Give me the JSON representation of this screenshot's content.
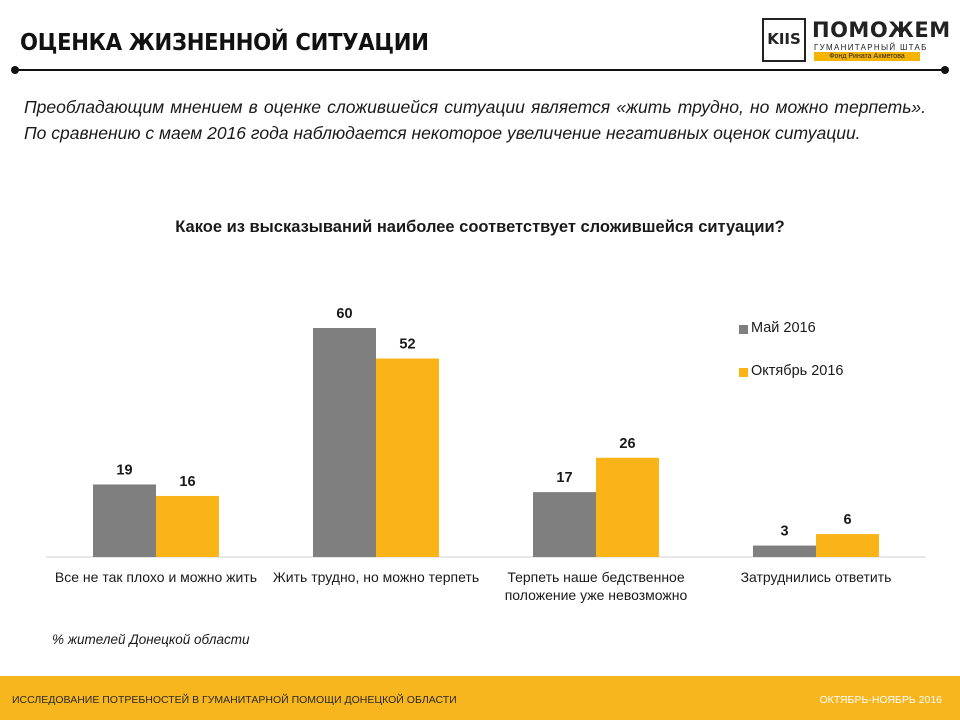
{
  "header": {
    "title": "ОЦЕНКА ЖИЗНЕННОЙ СИТУАЦИИ",
    "logo_kiis": "KIIS",
    "logo_brand": "ПОМОЖЕМ",
    "logo_subtitle": "ГУМАНИТАРНЫЙ ШТАБ",
    "logo_foundation": "Фонд Рината Ахметова"
  },
  "description": "Преобладающим мнением в оценке сложившейся ситуации является «жить трудно, но можно терпеть».  По сравнению с маем 2016 года наблюдается некоторое увеличение негативных оценок ситуации.",
  "note": "% жителей Донецкой области",
  "footer": {
    "left": "ИССЛЕДОВАНИЕ ПОТРЕБНОСТЕЙ В ГУМАНИТАРНОЙ ПОМОЩИ ДОНЕЦКОЙ ОБЛАСТИ",
    "right": "ОКТЯБРЬ-НОЯБРЬ 2016"
  },
  "colors": {
    "series1": "#7f7f7f",
    "series2": "#fbb417",
    "accent": "#f7b51e"
  },
  "chart_data": {
    "type": "bar",
    "title": "Какое из высказываний наиболее соответствует сложившейся ситуации?",
    "categories": [
      "Все не так плохо и можно жить",
      "Жить трудно, но можно терпеть",
      "Терпеть наше бедственное положение уже невозможно",
      "Затруднились ответить"
    ],
    "category_lines": [
      [
        "Все не так плохо и можно жить"
      ],
      [
        "Жить трудно, но можно терпеть"
      ],
      [
        "Терпеть наше бедственное",
        "положение уже невозможно"
      ],
      [
        "Затруднились ответить"
      ]
    ],
    "series": [
      {
        "name": "Май 2016",
        "values": [
          19,
          60,
          17,
          3
        ]
      },
      {
        "name": "Октябрь 2016",
        "values": [
          16,
          52,
          26,
          6
        ]
      }
    ],
    "ylim": [
      0,
      60
    ],
    "grid": false,
    "legend": "top-right",
    "xlabel": "",
    "ylabel": ""
  }
}
